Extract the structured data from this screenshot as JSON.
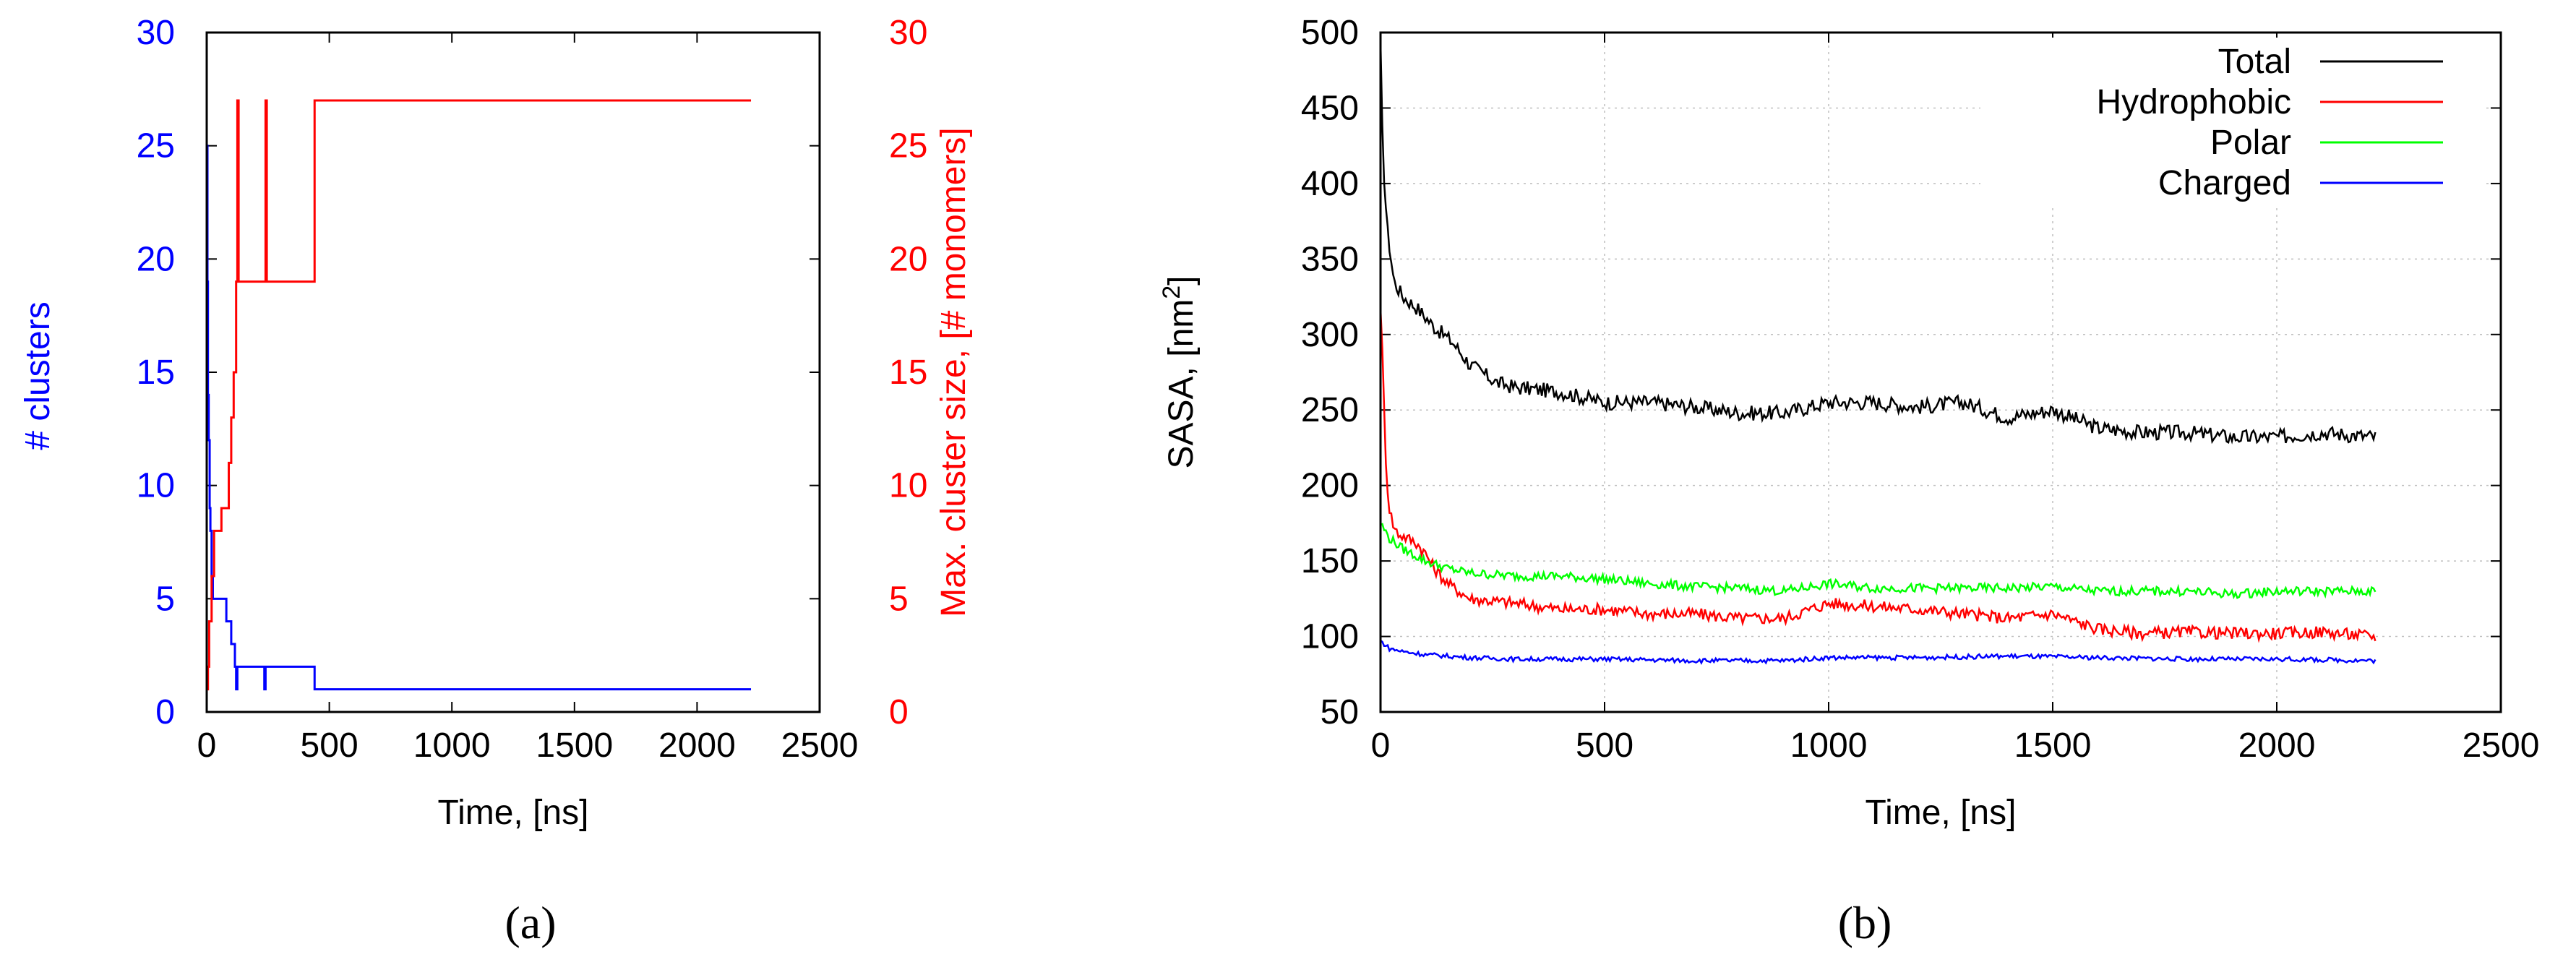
{
  "chart_data": [
    {
      "type": "line",
      "panel_label": "(a)",
      "xlabel": "Time, [ns]",
      "ylabel_left": "# clusters",
      "ylabel_right": "Max. cluster size, [# monomers]",
      "xlim": [
        0,
        2500
      ],
      "ylim_left": [
        0,
        30
      ],
      "ylim_right": [
        0,
        30
      ],
      "xticks": [
        "0",
        "500",
        "1000",
        "1500",
        "2000",
        "2500"
      ],
      "yticks_left": [
        "0",
        "5",
        "10",
        "15",
        "20",
        "25",
        "30"
      ],
      "yticks_right": [
        "0",
        "5",
        "10",
        "15",
        "20",
        "25",
        "30"
      ],
      "grid": false,
      "colors": {
        "left": "#0000ff",
        "right": "#ff0000"
      },
      "series": [
        {
          "name": "# clusters",
          "axis": "left",
          "color": "#0000ff",
          "x": [
            0,
            3,
            5,
            8,
            12,
            15,
            20,
            25,
            30,
            40,
            55,
            70,
            80,
            95,
            100,
            105,
            115,
            120,
            125,
            130,
            230,
            235,
            240,
            245,
            430,
            440,
            450,
            2220
          ],
          "y": [
            25,
            19,
            14,
            12,
            9,
            8,
            6,
            5,
            5,
            5,
            5,
            5,
            4,
            4,
            3,
            3,
            2,
            1,
            2,
            2,
            2,
            1,
            2,
            2,
            2,
            1,
            1,
            1
          ]
        },
        {
          "name": "Max. cluster size",
          "axis": "right",
          "color": "#ff0000",
          "x": [
            0,
            5,
            10,
            20,
            30,
            40,
            55,
            60,
            80,
            90,
            100,
            110,
            120,
            125,
            130,
            135,
            235,
            240,
            245,
            430,
            440,
            2220
          ],
          "y": [
            1,
            2,
            4,
            6,
            8,
            8,
            8,
            9,
            9,
            11,
            13,
            15,
            19,
            27,
            19,
            19,
            19,
            27,
            19,
            19,
            27,
            27
          ]
        }
      ]
    },
    {
      "type": "line",
      "panel_label": "(b)",
      "xlabel": "Time, [ns]",
      "ylabel": "SASA, [nm",
      "ylabel_sup": "2",
      "ylabel_end": "]",
      "xlim": [
        0,
        2500
      ],
      "ylim": [
        50,
        500
      ],
      "xticks": [
        "0",
        "500",
        "1000",
        "1500",
        "2000",
        "2500"
      ],
      "yticks": [
        "50",
        "100",
        "150",
        "200",
        "250",
        "300",
        "350",
        "400",
        "450",
        "500"
      ],
      "grid": true,
      "legend_position": "top-right",
      "series": [
        {
          "name": "Total",
          "color": "#000000",
          "x": [
            0,
            5,
            15,
            30,
            50,
            80,
            120,
            160,
            200,
            260,
            300,
            400,
            500,
            600,
            700,
            800,
            900,
            1000,
            1100,
            1200,
            1300,
            1400,
            1500,
            1600,
            1700,
            1800,
            1900,
            2000,
            2100,
            2220
          ],
          "y": [
            490,
            420,
            370,
            335,
            325,
            318,
            305,
            295,
            280,
            268,
            265,
            262,
            255,
            255,
            252,
            248,
            248,
            255,
            255,
            252,
            255,
            245,
            250,
            238,
            235,
            235,
            232,
            232,
            235,
            232
          ]
        },
        {
          "name": "Hydrophobic",
          "color": "#ff0000",
          "x": [
            0,
            5,
            10,
            15,
            20,
            25,
            30,
            40,
            60,
            80,
            100,
            120,
            150,
            200,
            300,
            400,
            500,
            600,
            700,
            800,
            900,
            1000,
            1100,
            1200,
            1300,
            1400,
            1500,
            1600,
            1700,
            1800,
            1900,
            2000,
            2100,
            2220
          ],
          "y": [
            320,
            280,
            230,
            200,
            185,
            178,
            172,
            168,
            165,
            162,
            155,
            145,
            135,
            125,
            122,
            118,
            118,
            115,
            115,
            112,
            112,
            122,
            120,
            118,
            115,
            112,
            115,
            105,
            102,
            103,
            102,
            102,
            103,
            100
          ]
        },
        {
          "name": "Polar",
          "color": "#00ff00",
          "x": [
            0,
            20,
            50,
            100,
            150,
            200,
            300,
            400,
            500,
            600,
            700,
            800,
            900,
            1000,
            1100,
            1200,
            1300,
            1400,
            1500,
            1600,
            1700,
            1800,
            1900,
            2000,
            2100,
            2220
          ],
          "y": [
            175,
            165,
            158,
            150,
            145,
            142,
            140,
            140,
            138,
            135,
            133,
            132,
            130,
            135,
            132,
            132,
            132,
            132,
            133,
            130,
            130,
            130,
            128,
            130,
            130,
            130
          ]
        },
        {
          "name": "Charged",
          "color": "#0000ff",
          "x": [
            0,
            20,
            50,
            100,
            200,
            300,
            500,
            700,
            900,
            1000,
            1200,
            1400,
            1600,
            1800,
            2000,
            2220
          ],
          "y": [
            97,
            92,
            90,
            88,
            86,
            85,
            85,
            84,
            84,
            86,
            86,
            87,
            86,
            85,
            85,
            84
          ]
        }
      ]
    }
  ]
}
